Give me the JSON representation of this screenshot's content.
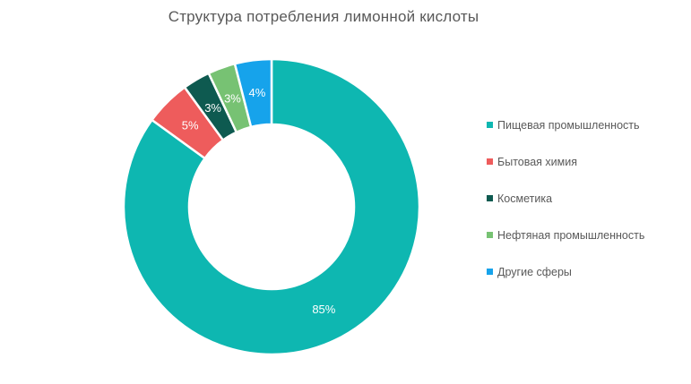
{
  "chart_data": {
    "type": "pie",
    "subtype": "donut",
    "title": "Структура потребления лимонной кислоты",
    "categories": [
      "Пищевая промышленность",
      "Бытовая химия",
      "Косметика",
      "Нефтяная промышленность",
      "Другие сферы"
    ],
    "values": [
      85,
      5,
      3,
      3,
      4
    ],
    "data_labels": [
      "85%",
      "5%",
      "3%",
      "3%",
      "4%"
    ],
    "colors": [
      "#0EB7B1",
      "#EE5C5C",
      "#0E5A50",
      "#77C273",
      "#16A3EB"
    ],
    "start_angle_deg": 0,
    "direction": "clockwise",
    "donut_hole_ratio": 0.56,
    "separator_color": "#FFFFFF",
    "data_label_color": "#FFFFFF",
    "title_color": "#595959",
    "legend_text_color": "#595959",
    "legend_position": "right",
    "background_color": "#FFFFFF"
  }
}
